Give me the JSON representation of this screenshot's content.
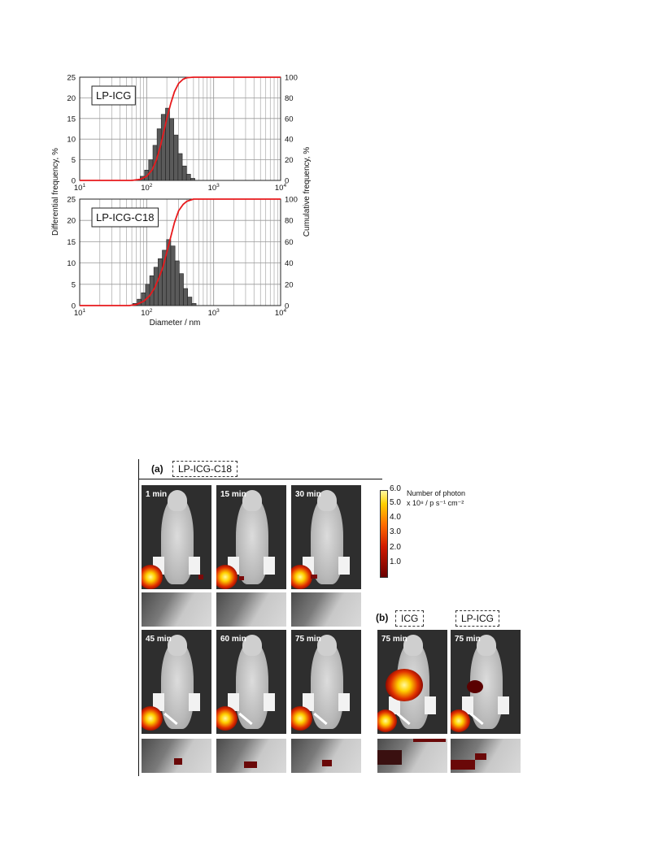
{
  "figure": {
    "y_left_label": "Differential frequency, %",
    "y_right_label": "Cumulative frequency, %",
    "x_label": "Diameter / nm",
    "left_ticks": [
      "0",
      "5",
      "10",
      "15",
      "20",
      "25"
    ],
    "right_ticks": [
      "0",
      "20",
      "40",
      "60",
      "80",
      "100"
    ],
    "x_ticks": [
      {
        "base": "10",
        "exp": "1"
      },
      {
        "base": "10",
        "exp": "2"
      },
      {
        "base": "10",
        "exp": "3"
      },
      {
        "base": "10",
        "exp": "4"
      }
    ],
    "colors": {
      "histogram": "#5a5a5a",
      "cumulative": "#e8191c",
      "grid": "#999999"
    }
  },
  "chart_data": [
    {
      "type": "bar",
      "label": "LP-ICG",
      "x_scale": "log",
      "xlim": [
        10,
        10000
      ],
      "ylim_left": [
        0,
        25
      ],
      "ylim_right": [
        0,
        100
      ],
      "grid": true,
      "bins_nm": [
        [
          80,
          93
        ],
        [
          93,
          107
        ],
        [
          107,
          124
        ],
        [
          124,
          143
        ],
        [
          143,
          165
        ],
        [
          165,
          191
        ],
        [
          191,
          220
        ],
        [
          220,
          254
        ],
        [
          254,
          294
        ],
        [
          294,
          340
        ],
        [
          340,
          392
        ],
        [
          392,
          453
        ],
        [
          453,
          524
        ]
      ],
      "differential": [
        1,
        2.5,
        5,
        8.5,
        12.5,
        16,
        17.5,
        15,
        11,
        6.5,
        3.5,
        1.5,
        0.5
      ],
      "cumulative": {
        "x": [
          10,
          60,
          80,
          100,
          120,
          140,
          160,
          180,
          200,
          230,
          260,
          300,
          350,
          400,
          500,
          10000
        ],
        "y": [
          0,
          0,
          1,
          4,
          10,
          20,
          33,
          47,
          60,
          75,
          86,
          94,
          98,
          99.5,
          100,
          100
        ]
      }
    },
    {
      "type": "bar",
      "label": "LP-ICG-C18",
      "x_scale": "log",
      "xlim": [
        10,
        10000
      ],
      "ylim_left": [
        0,
        25
      ],
      "ylim_right": [
        0,
        100
      ],
      "grid": true,
      "bins_nm": [
        [
          62,
          72
        ],
        [
          72,
          83
        ],
        [
          83,
          96
        ],
        [
          96,
          111
        ],
        [
          111,
          128
        ],
        [
          128,
          148
        ],
        [
          148,
          171
        ],
        [
          171,
          198
        ],
        [
          198,
          229
        ],
        [
          229,
          265
        ],
        [
          265,
          306
        ],
        [
          306,
          354
        ],
        [
          354,
          409
        ],
        [
          409,
          473
        ],
        [
          473,
          547
        ]
      ],
      "differential": [
        0.5,
        1.5,
        3,
        5,
        7,
        9,
        11,
        13,
        15.5,
        14,
        10.5,
        7.5,
        4,
        2,
        0.5
      ],
      "cumulative": {
        "x": [
          10,
          55,
          70,
          90,
          110,
          130,
          150,
          175,
          200,
          230,
          260,
          300,
          350,
          400,
          500,
          10000
        ],
        "y": [
          0,
          0,
          1,
          4,
          9,
          16,
          25,
          36,
          50,
          65,
          78,
          89,
          95,
          98,
          100,
          100
        ]
      }
    }
  ],
  "imaging": {
    "part_a": "(a)",
    "part_a_label": "LP-ICG-C18",
    "part_b": "(b)",
    "part_b_label_1": "ICG",
    "part_b_label_2": "LP-ICG",
    "times": [
      "1 min",
      "15 min",
      "30 min",
      "45 min",
      "60 min",
      "75 min"
    ],
    "times_b": [
      "75 min",
      "75 min"
    ],
    "colorbar_title_1": "Number of photon",
    "colorbar_title_2": "x 10⁸ / p s⁻¹ cm⁻²",
    "colorbar_ticks": [
      "6.0",
      "5.0",
      "4.0",
      "3.0",
      "2.0",
      "1.0"
    ]
  }
}
